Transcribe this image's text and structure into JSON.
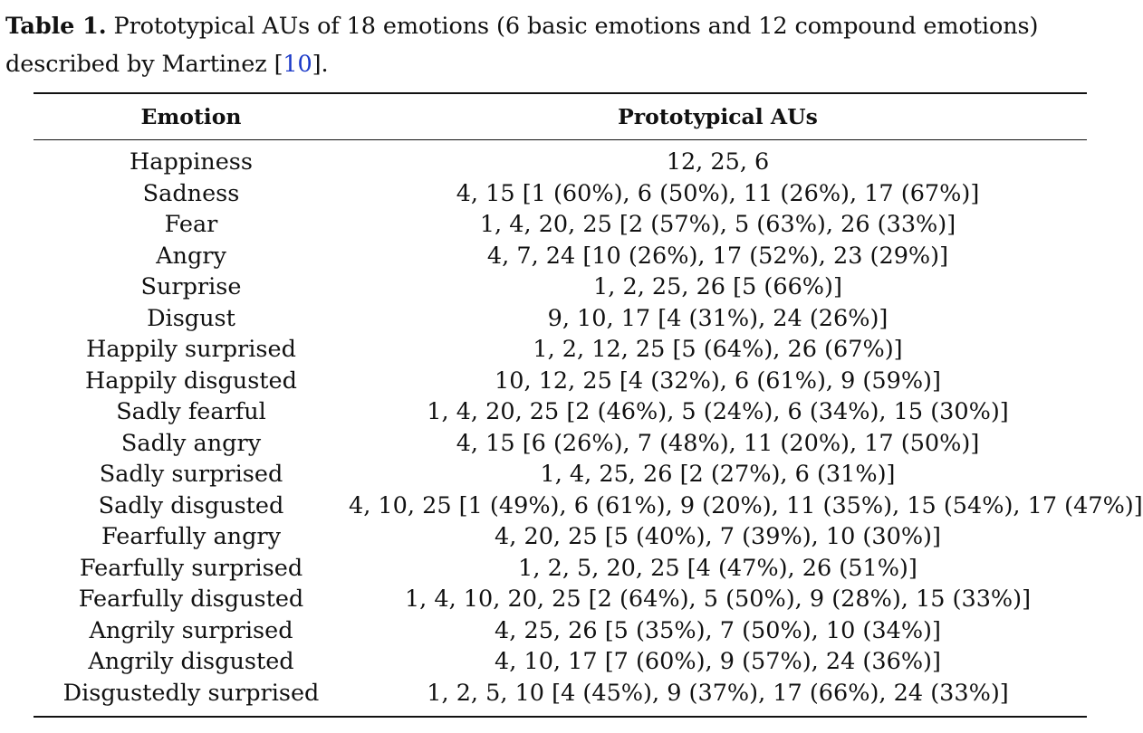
{
  "caption": {
    "label": "Table 1.",
    "text_before_cite": " Prototypical AUs of 18 emotions (6 basic emotions and 12 compound emotions) described by Martinez [",
    "cite": "10",
    "text_after_cite": "]."
  },
  "table": {
    "headers": [
      "Emotion",
      "Prototypical AUs"
    ],
    "rows": [
      [
        "Happiness",
        "12, 25, 6"
      ],
      [
        "Sadness",
        "4, 15 [1 (60%), 6 (50%), 11 (26%), 17 (67%)]"
      ],
      [
        "Fear",
        "1, 4, 20, 25 [2 (57%), 5 (63%), 26 (33%)]"
      ],
      [
        "Angry",
        "4, 7, 24 [10 (26%), 17 (52%), 23 (29%)]"
      ],
      [
        "Surprise",
        "1, 2, 25, 26 [5 (66%)]"
      ],
      [
        "Disgust",
        "9, 10, 17 [4 (31%), 24 (26%)]"
      ],
      [
        "Happily surprised",
        "1, 2, 12, 25 [5 (64%), 26 (67%)]"
      ],
      [
        "Happily disgusted",
        "10, 12, 25 [4 (32%), 6 (61%), 9 (59%)]"
      ],
      [
        "Sadly fearful",
        "1, 4, 20, 25 [2 (46%), 5 (24%), 6 (34%), 15 (30%)]"
      ],
      [
        "Sadly angry",
        "4, 15 [6 (26%), 7 (48%), 11 (20%), 17 (50%)]"
      ],
      [
        "Sadly surprised",
        "1, 4, 25, 26 [2 (27%), 6 (31%)]"
      ],
      [
        "Sadly disgusted",
        "4, 10, 25 [1 (49%), 6 (61%), 9 (20%), 11 (35%), 15 (54%), 17 (47%)]"
      ],
      [
        "Fearfully angry",
        "4, 20, 25 [5 (40%), 7 (39%), 10 (30%)]"
      ],
      [
        "Fearfully surprised",
        "1, 2, 5, 20, 25 [4 (47%), 26 (51%)]"
      ],
      [
        "Fearfully disgusted",
        "1, 4, 10, 20, 25 [2 (64%), 5 (50%), 9 (28%), 15 (33%)]"
      ],
      [
        "Angrily surprised",
        "4, 25, 26 [5 (35%), 7 (50%), 10 (34%)]"
      ],
      [
        "Angrily disgusted",
        "4, 10, 17 [7 (60%), 9 (57%), 24 (36%)]"
      ],
      [
        "Disgustedly surprised",
        "1, 2, 5, 10 [4 (45%), 9 (37%), 17 (66%), 24 (33%)]"
      ]
    ]
  }
}
